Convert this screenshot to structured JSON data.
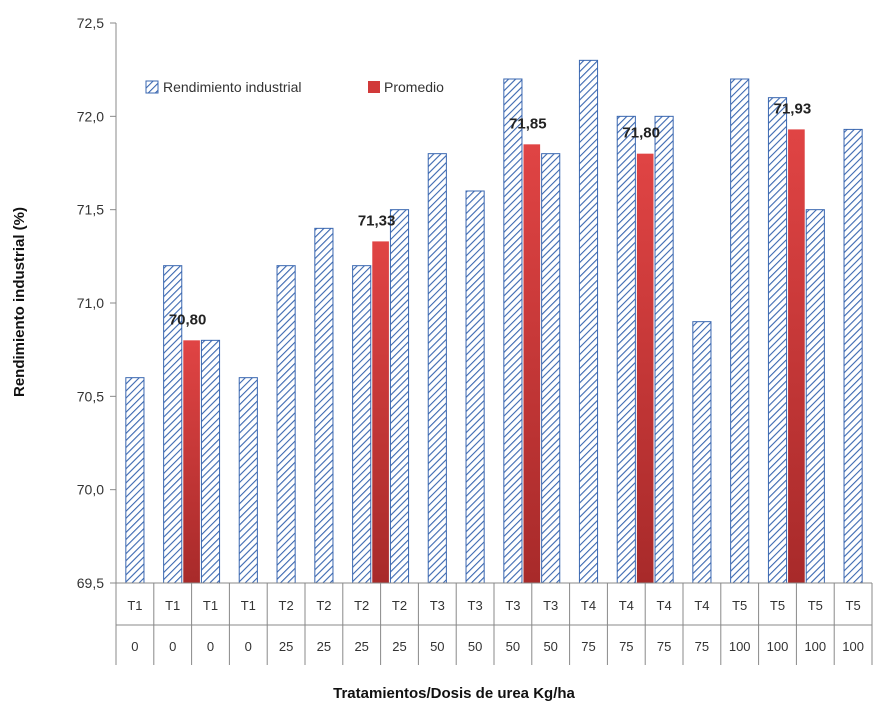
{
  "chart_data": {
    "type": "bar",
    "ylabel": "Rendimiento industrial (%)",
    "xlabel": "Tratamientos/Dosis  de urea Kg/ha",
    "ylim": [
      69.5,
      72.5
    ],
    "yticks": [
      "69,5",
      "70,0",
      "70,5",
      "71,0",
      "71,5",
      "72,0",
      "72,5"
    ],
    "ytick_values": [
      69.5,
      70.0,
      70.5,
      71.0,
      71.5,
      72.0,
      72.5
    ],
    "grid": false,
    "legend_position": "top-left",
    "categories_row1": [
      "T1",
      "T1",
      "T1",
      "T1",
      "T2",
      "T2",
      "T2",
      "T2",
      "T3",
      "T3",
      "T3",
      "T3",
      "T4",
      "T4",
      "T4",
      "T4",
      "T5",
      "T5",
      "T5",
      "T5"
    ],
    "categories_row2": [
      "0",
      "0",
      "0",
      "0",
      "25",
      "25",
      "25",
      "25",
      "50",
      "50",
      "50",
      "50",
      "75",
      "75",
      "75",
      "75",
      "100",
      "100",
      "100",
      "100"
    ],
    "series": [
      {
        "name": "Rendimiento industrial",
        "color": "#3a67b0",
        "pattern": "diagonal-hatch",
        "values": [
          70.6,
          71.2,
          70.8,
          70.6,
          71.2,
          71.4,
          71.2,
          71.5,
          71.8,
          71.6,
          72.2,
          71.8,
          72.3,
          72.0,
          72.0,
          70.9,
          72.2,
          72.1,
          71.5,
          71.93
        ]
      },
      {
        "name": "Promedio",
        "color": "#d13a3a",
        "values": [
          null,
          70.8,
          null,
          null,
          null,
          null,
          71.33,
          null,
          null,
          null,
          71.85,
          null,
          null,
          71.8,
          null,
          null,
          null,
          71.93,
          null,
          null
        ],
        "labels": [
          null,
          "70,80",
          null,
          null,
          null,
          null,
          "71,33",
          null,
          null,
          null,
          "71,85",
          null,
          null,
          "71,80",
          null,
          null,
          null,
          "71,93",
          null,
          null
        ]
      }
    ]
  }
}
